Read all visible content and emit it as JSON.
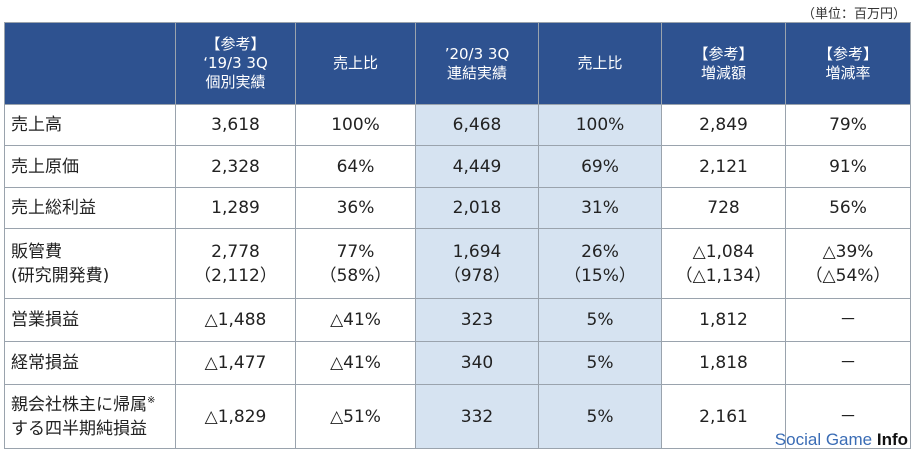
{
  "unit_label": "（単位：百万円）",
  "headers": {
    "col1_line1": "【参考】",
    "col1_line2": "‘19/3 3Q",
    "col1_line3": "個別実績",
    "col2": "売上比",
    "col3_line1": "’20/3 3Q",
    "col3_line2": "連結実績",
    "col4": "売上比",
    "col5_line1": "【参考】",
    "col5_line2": "増減額",
    "col6_line1": "【参考】",
    "col6_line2": "増減率"
  },
  "rows": [
    {
      "label": "売上高",
      "c1": "3,618",
      "c2": "100%",
      "c3": "6,468",
      "c4": "100%",
      "c5": "2,849",
      "c6": "79%"
    },
    {
      "label": "売上原価",
      "c1": "2,328",
      "c2": "64%",
      "c3": "4,449",
      "c4": "69%",
      "c5": "2,121",
      "c6": "91%"
    },
    {
      "label": "売上総利益",
      "c1": "1,289",
      "c2": "36%",
      "c3": "2,018",
      "c4": "31%",
      "c5": "728",
      "c6": "56%"
    },
    {
      "label": "販管費",
      "label2": "(研究開発費)",
      "c1": "2,778",
      "c1b": "（2,112）",
      "c2": "77%",
      "c2b": "（58%）",
      "c3": "1,694",
      "c3b": "（978）",
      "c4": "26%",
      "c4b": "（15%）",
      "c5": "△1,084",
      "c5b": "（△1,134）",
      "c6": "△39%",
      "c6b": "（△54%）"
    },
    {
      "label": "営業損益",
      "c1": "△1,488",
      "c2": "△41%",
      "c3": "323",
      "c4": "5%",
      "c5": "1,812",
      "c6": "－"
    },
    {
      "label": "経常損益",
      "c1": "△1,477",
      "c2": "△41%",
      "c3": "340",
      "c4": "5%",
      "c5": "1,818",
      "c6": "－"
    },
    {
      "label": "親会社株主に帰属",
      "label_note": "※",
      "label2": "する四半期純損益",
      "c1": "△1,829",
      "c2": "△51%",
      "c3": "332",
      "c4": "5%",
      "c5": "2,161",
      "c6": "－"
    }
  ],
  "watermark": {
    "social": "Social Game ",
    "info": "Info"
  }
}
